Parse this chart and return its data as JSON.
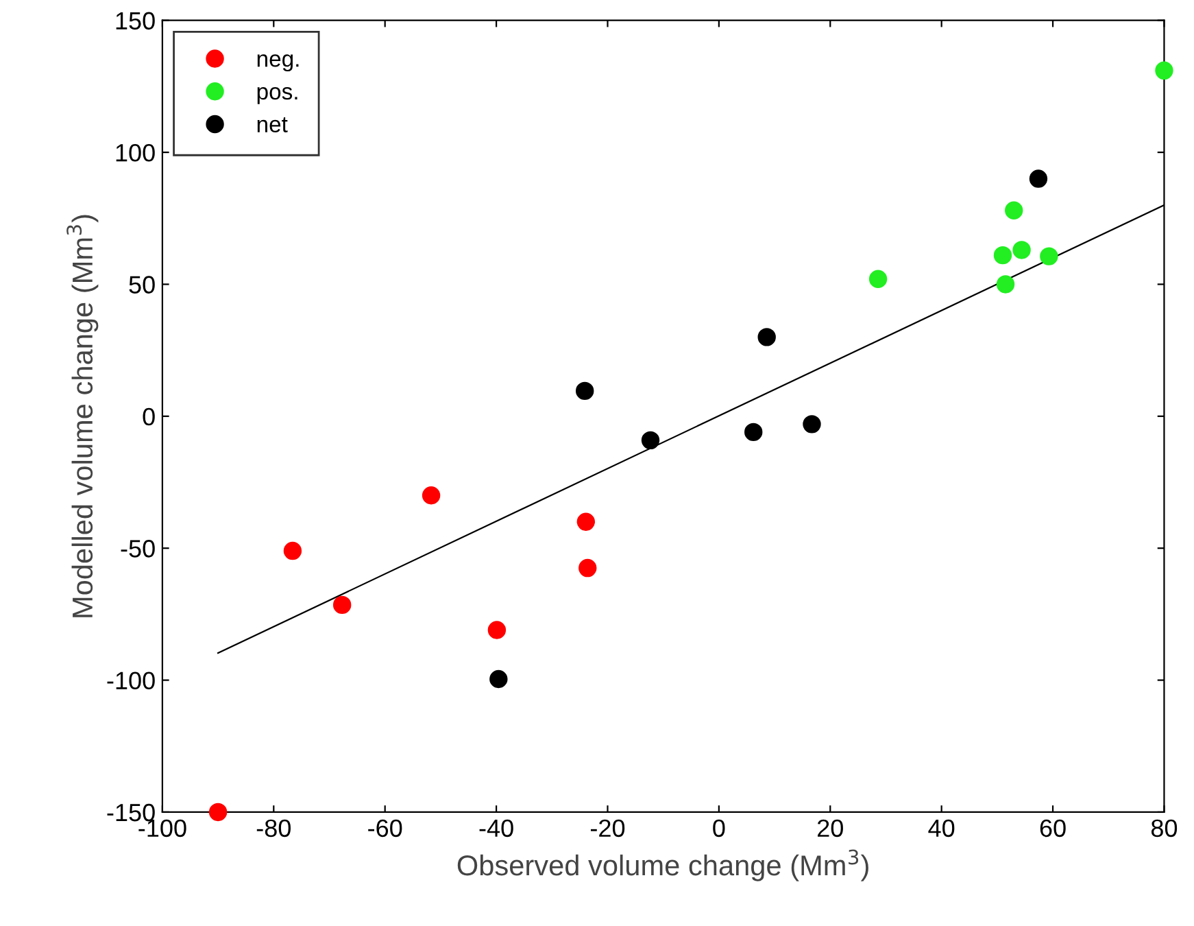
{
  "chart_data": {
    "type": "scatter",
    "xlabel": "Observed volume change (Mm$^{3}$)",
    "ylabel": "Modelled volume change (Mm$^{3}$)",
    "xlim": [
      -100,
      80
    ],
    "ylim": [
      -150,
      150
    ],
    "xticks": [
      -100,
      -80,
      -60,
      -40,
      -20,
      0,
      20,
      40,
      60,
      80
    ],
    "yticks": [
      -150,
      -100,
      -50,
      0,
      50,
      100,
      150
    ],
    "grid": false,
    "legend": "top left",
    "marker": "circle",
    "series": [
      {
        "name": "neg.",
        "color": "#ff0000",
        "x": [
          -90,
          -76.6,
          -67.7,
          -51.7,
          -39.9,
          -23.9,
          -23.6
        ],
        "values": [
          -150,
          -51,
          -71.5,
          -30,
          -81,
          -40,
          -57.5
        ]
      },
      {
        "name": "pos.",
        "color": "#22ee22",
        "x": [
          80,
          28.6,
          51,
          51.5,
          53,
          54.4,
          59.3
        ],
        "values": [
          131,
          52,
          61,
          50,
          78,
          63,
          60.6
        ]
      },
      {
        "name": "net",
        "color": "#000000",
        "x": [
          57.4,
          -39.6,
          -24.1,
          -12.3,
          6.2,
          8.6,
          16.7
        ],
        "values": [
          90,
          -99.6,
          9.6,
          -9.1,
          -6,
          30,
          -3
        ]
      },
      {
        "type": "line",
        "color": "#000000",
        "marker": "none",
        "x": [
          -90,
          80
        ],
        "values": [
          -89.7,
          80
        ]
      }
    ]
  }
}
